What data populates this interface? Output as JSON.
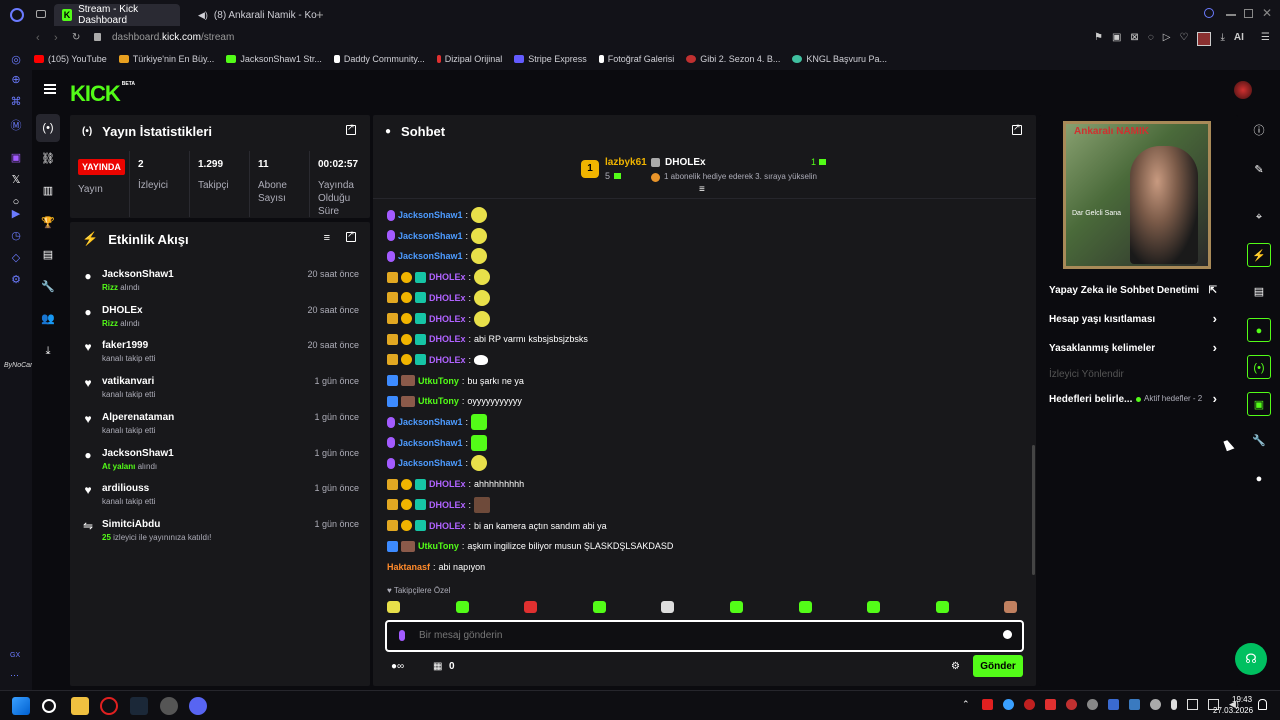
{
  "browser": {
    "tabs": [
      {
        "label": "Stream - Kick Dashboard",
        "active": true
      },
      {
        "label": "(8) Ankarali Namik - Ko",
        "active": false
      }
    ],
    "url_prefix": "dashboard.",
    "url_host": "kick.com",
    "url_path": "/stream",
    "ai_label": "AI",
    "bookmarks": [
      {
        "label": "(105) YouTube",
        "color": "#ff0000"
      },
      {
        "label": "Türkiye'nin En Büy...",
        "color": "#e8a020"
      },
      {
        "label": "JacksonShaw1 Str...",
        "color": "#53fc18"
      },
      {
        "label": "Daddy Community...",
        "color": "#ffffff"
      },
      {
        "label": "Dizipal Orijinal",
        "color": "#e03030"
      },
      {
        "label": "Stripe Express",
        "color": "#635bff"
      },
      {
        "label": "Fotoğraf Galerisi",
        "color": "#ffffff"
      },
      {
        "label": "Gibi 2. Sezon 4. B...",
        "color": "#c03030"
      },
      {
        "label": "KNGL Başvuru Pa...",
        "color": "#40c0a0"
      }
    ]
  },
  "kick": {
    "logo": "KICK",
    "logo_sup": "BETA",
    "side_watermark": "ByNoCan"
  },
  "stats": {
    "title": "Yayın İstatistikleri",
    "live_badge": "YAYINDA",
    "live_label": "Yayın",
    "items": [
      {
        "value": "2",
        "label": "İzleyici"
      },
      {
        "value": "1.299",
        "label": "Takipçi"
      },
      {
        "value": "11",
        "label": "Abone Sayısı"
      },
      {
        "value": "00:02:57",
        "label": "Yayında Olduğu Süre"
      }
    ]
  },
  "activity": {
    "title": "Etkinlik Akışı",
    "items": [
      {
        "icon": "gift-icon",
        "name": "JacksonShaw1",
        "highlight": "Rizz",
        "sub": "alındı",
        "time": "20 saat önce"
      },
      {
        "icon": "gift-icon",
        "name": "DHOLEx",
        "highlight": "Rizz",
        "sub": "alındı",
        "time": "20 saat önce"
      },
      {
        "icon": "heart-icon",
        "name": "faker1999",
        "highlight": "",
        "sub": "kanalı takip etti",
        "time": "20 saat önce"
      },
      {
        "icon": "heart-icon",
        "name": "vatikanvari",
        "highlight": "",
        "sub": "kanalı takip etti",
        "time": "1 gün önce"
      },
      {
        "icon": "heart-icon",
        "name": "Alperenataman",
        "highlight": "",
        "sub": "kanalı takip etti",
        "time": "1 gün önce"
      },
      {
        "icon": "gift-icon",
        "name": "JacksonShaw1",
        "highlight": "At yalanı",
        "sub": "alındı",
        "time": "1 gün önce"
      },
      {
        "icon": "heart-icon",
        "name": "ardiliouss",
        "highlight": "",
        "sub": "kanalı takip etti",
        "time": "1 gün önce"
      },
      {
        "icon": "raid-icon",
        "name": "SimitciAbdu",
        "highlight": "25",
        "sub": "izleyici ile yayınınıza katıldı!",
        "time": "1 gün önce"
      }
    ]
  },
  "chat": {
    "title": "Sohbet",
    "pinned": {
      "rank": "1",
      "user1": "lazbyk61",
      "user1_count": "5",
      "user2": "DHOLEx",
      "user2_count": "1",
      "note": "1 abonelik hediye ederek 3. sıraya yükselin"
    },
    "messages": [
      {
        "badges": [
          "sub"
        ],
        "user": "JacksonShaw1",
        "color": "u-blue",
        "text": "",
        "emote": "e-yellow"
      },
      {
        "badges": [
          "sub"
        ],
        "user": "JacksonShaw1",
        "color": "u-blue",
        "text": "",
        "emote": "e-yellow"
      },
      {
        "badges": [
          "sub"
        ],
        "user": "JacksonShaw1",
        "color": "u-blue",
        "text": "",
        "emote": "e-yellow"
      },
      {
        "badges": [
          "crown",
          "coin",
          "green"
        ],
        "user": "DHOLEx",
        "color": "u-purple",
        "text": "",
        "emote": "e-yellow"
      },
      {
        "badges": [
          "crown",
          "coin",
          "green"
        ],
        "user": "DHOLEx",
        "color": "u-purple",
        "text": "",
        "emote": "e-yellow"
      },
      {
        "badges": [
          "crown",
          "coin",
          "green"
        ],
        "user": "DHOLEx",
        "color": "u-purple",
        "text": "",
        "emote": "e-yellow"
      },
      {
        "badges": [
          "crown",
          "coin",
          "green"
        ],
        "user": "DHOLEx",
        "color": "u-purple",
        "text": "abi RP varmı ksbsjsbsjzbsks",
        "emote": ""
      },
      {
        "badges": [
          "crown",
          "coin",
          "green"
        ],
        "user": "DHOLEx",
        "color": "u-purple",
        "text": "",
        "emote": "e-duck"
      },
      {
        "badges": [
          "blue",
          "av"
        ],
        "user": "UtkuTony",
        "color": "u-green",
        "text": "bu şarkı ne ya",
        "emote": ""
      },
      {
        "badges": [
          "blue",
          "av"
        ],
        "user": "UtkuTony",
        "color": "u-green",
        "text": "oyyyyyyyyyyy",
        "emote": ""
      },
      {
        "badges": [
          "sub"
        ],
        "user": "JacksonShaw1",
        "color": "u-blue",
        "text": "",
        "emote": "e-green"
      },
      {
        "badges": [
          "sub"
        ],
        "user": "JacksonShaw1",
        "color": "u-blue",
        "text": "",
        "emote": "e-green"
      },
      {
        "badges": [
          "sub"
        ],
        "user": "JacksonShaw1",
        "color": "u-blue",
        "text": "",
        "emote": "e-yellow"
      },
      {
        "badges": [
          "crown",
          "coin",
          "green"
        ],
        "user": "DHOLEx",
        "color": "u-purple",
        "text": "ahhhhhhhhh",
        "emote": ""
      },
      {
        "badges": [
          "crown",
          "coin",
          "green"
        ],
        "user": "DHOLEx",
        "color": "u-purple",
        "text": "",
        "emote": "e-brown"
      },
      {
        "badges": [
          "crown",
          "coin",
          "green"
        ],
        "user": "DHOLEx",
        "color": "u-purple",
        "text": "bi an kamera açtın sandım abi ya",
        "emote": ""
      },
      {
        "badges": [
          "blue",
          "av"
        ],
        "user": "UtkuTony",
        "color": "u-green",
        "text": "aşkım ingilizce biliyor musun ŞLASKDŞLSAKDASD",
        "emote": ""
      },
      {
        "badges": [],
        "user": "Haktanasf",
        "color": "u-orange",
        "text": "abi napıyon",
        "emote": ""
      }
    ],
    "followers_only": "Takipçilere Özel",
    "input_placeholder": "Bir mesaj gönderin",
    "footer_count": "0",
    "send_label": "Gönder"
  },
  "rightpanel": {
    "album_title": "Ankaralı NAMIK",
    "album_subtitle": "Dar Gelcli Sana",
    "ai_moderation": "Yapay Zeka ile Sohbet Denetimi",
    "age_restriction": "Hesap yaşı kısıtlaması",
    "banned_words": "Yasaklanmış kelimeler",
    "viewer_redirect": "İzleyici Yönlendir",
    "goals": "Hedefleri belirle...",
    "goals_status": "Aktif hedefler - 2"
  },
  "taskbar": {
    "time": "19:43",
    "date": "27.03.2026"
  },
  "colors": {
    "accent": "#53fc18",
    "live": "#eb0400",
    "panel": "#18181b"
  }
}
